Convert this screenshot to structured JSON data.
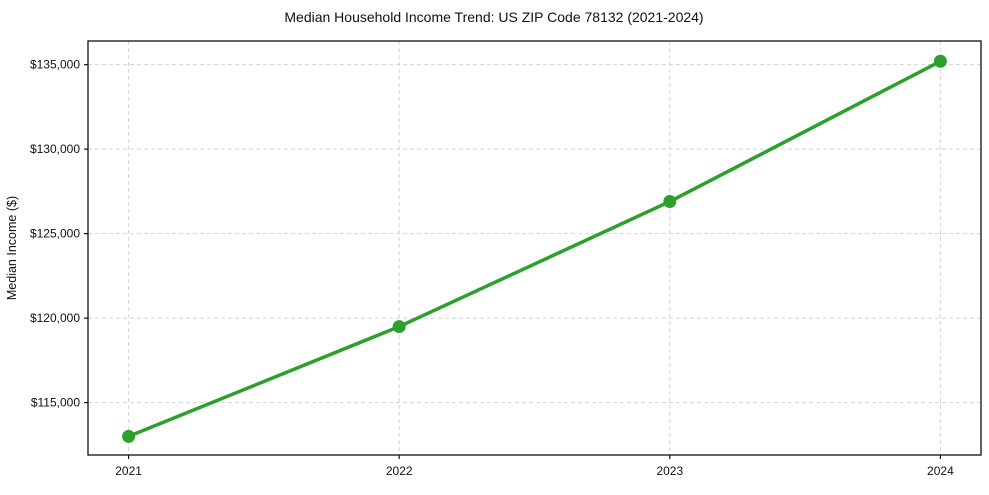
{
  "chart_data": {
    "type": "line",
    "title": "Median Household Income Trend: US ZIP Code 78132 (2021-2024)",
    "xlabel": "",
    "ylabel": "Median Income ($)",
    "categories": [
      "2021",
      "2022",
      "2023",
      "2024"
    ],
    "x": [
      2021,
      2022,
      2023,
      2024
    ],
    "values": [
      113000,
      119500,
      126900,
      135200
    ],
    "series": [
      {
        "name": "Median Household Income",
        "values": [
          113000,
          119500,
          126900,
          135200
        ]
      }
    ],
    "xlim": [
      2020.85,
      2024.15
    ],
    "ylim": [
      111900,
      136400
    ],
    "yticks": [
      115000,
      120000,
      125000,
      130000,
      135000
    ],
    "ytick_labels": [
      "$115,000",
      "$120,000",
      "$125,000",
      "$130,000",
      "$135,000"
    ],
    "xticks": [
      2021,
      2022,
      2023,
      2024
    ],
    "xtick_labels": [
      "2021",
      "2022",
      "2023",
      "2024"
    ],
    "grid": true,
    "grid_style": "dashed",
    "grid_color": "#d4d4d4",
    "line_color": "#2ca02c",
    "marker_color": "#2ca02c",
    "marker_shape": "circle",
    "legend": "none",
    "background_color": "#ffffff"
  }
}
